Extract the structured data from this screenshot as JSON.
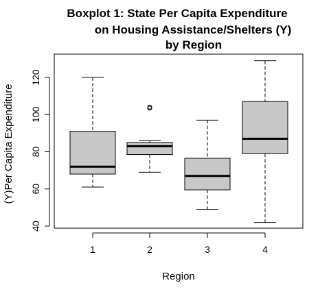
{
  "chart_data": {
    "type": "boxplot",
    "title_lines": [
      "Boxplot 1: State Per Capita Expenditure",
      "on Housing Assistance/Shelters (Y)",
      "by Region"
    ],
    "xlabel": "Region",
    "ylabel": "(Y)Per Capita Expenditure",
    "categories": [
      "1",
      "2",
      "3",
      "4"
    ],
    "yticks": [
      40,
      60,
      80,
      100,
      120
    ],
    "ylim": [
      38,
      132
    ],
    "grid": false,
    "box_fill": "#c8c8c8",
    "boxes": [
      {
        "category": "1",
        "min": 61,
        "q1": 68,
        "median": 72,
        "q3": 91,
        "max": 120,
        "outliers": []
      },
      {
        "category": "2",
        "min": 69,
        "q1": 78.5,
        "median": 83,
        "q3": 85,
        "max": 86,
        "outliers": [
          103.5,
          104
        ]
      },
      {
        "category": "3",
        "min": 49,
        "q1": 59.5,
        "median": 67,
        "q3": 76.5,
        "max": 97,
        "outliers": []
      },
      {
        "category": "4",
        "min": 42,
        "q1": 79,
        "median": 87,
        "q3": 107,
        "max": 129,
        "outliers": []
      }
    ]
  }
}
